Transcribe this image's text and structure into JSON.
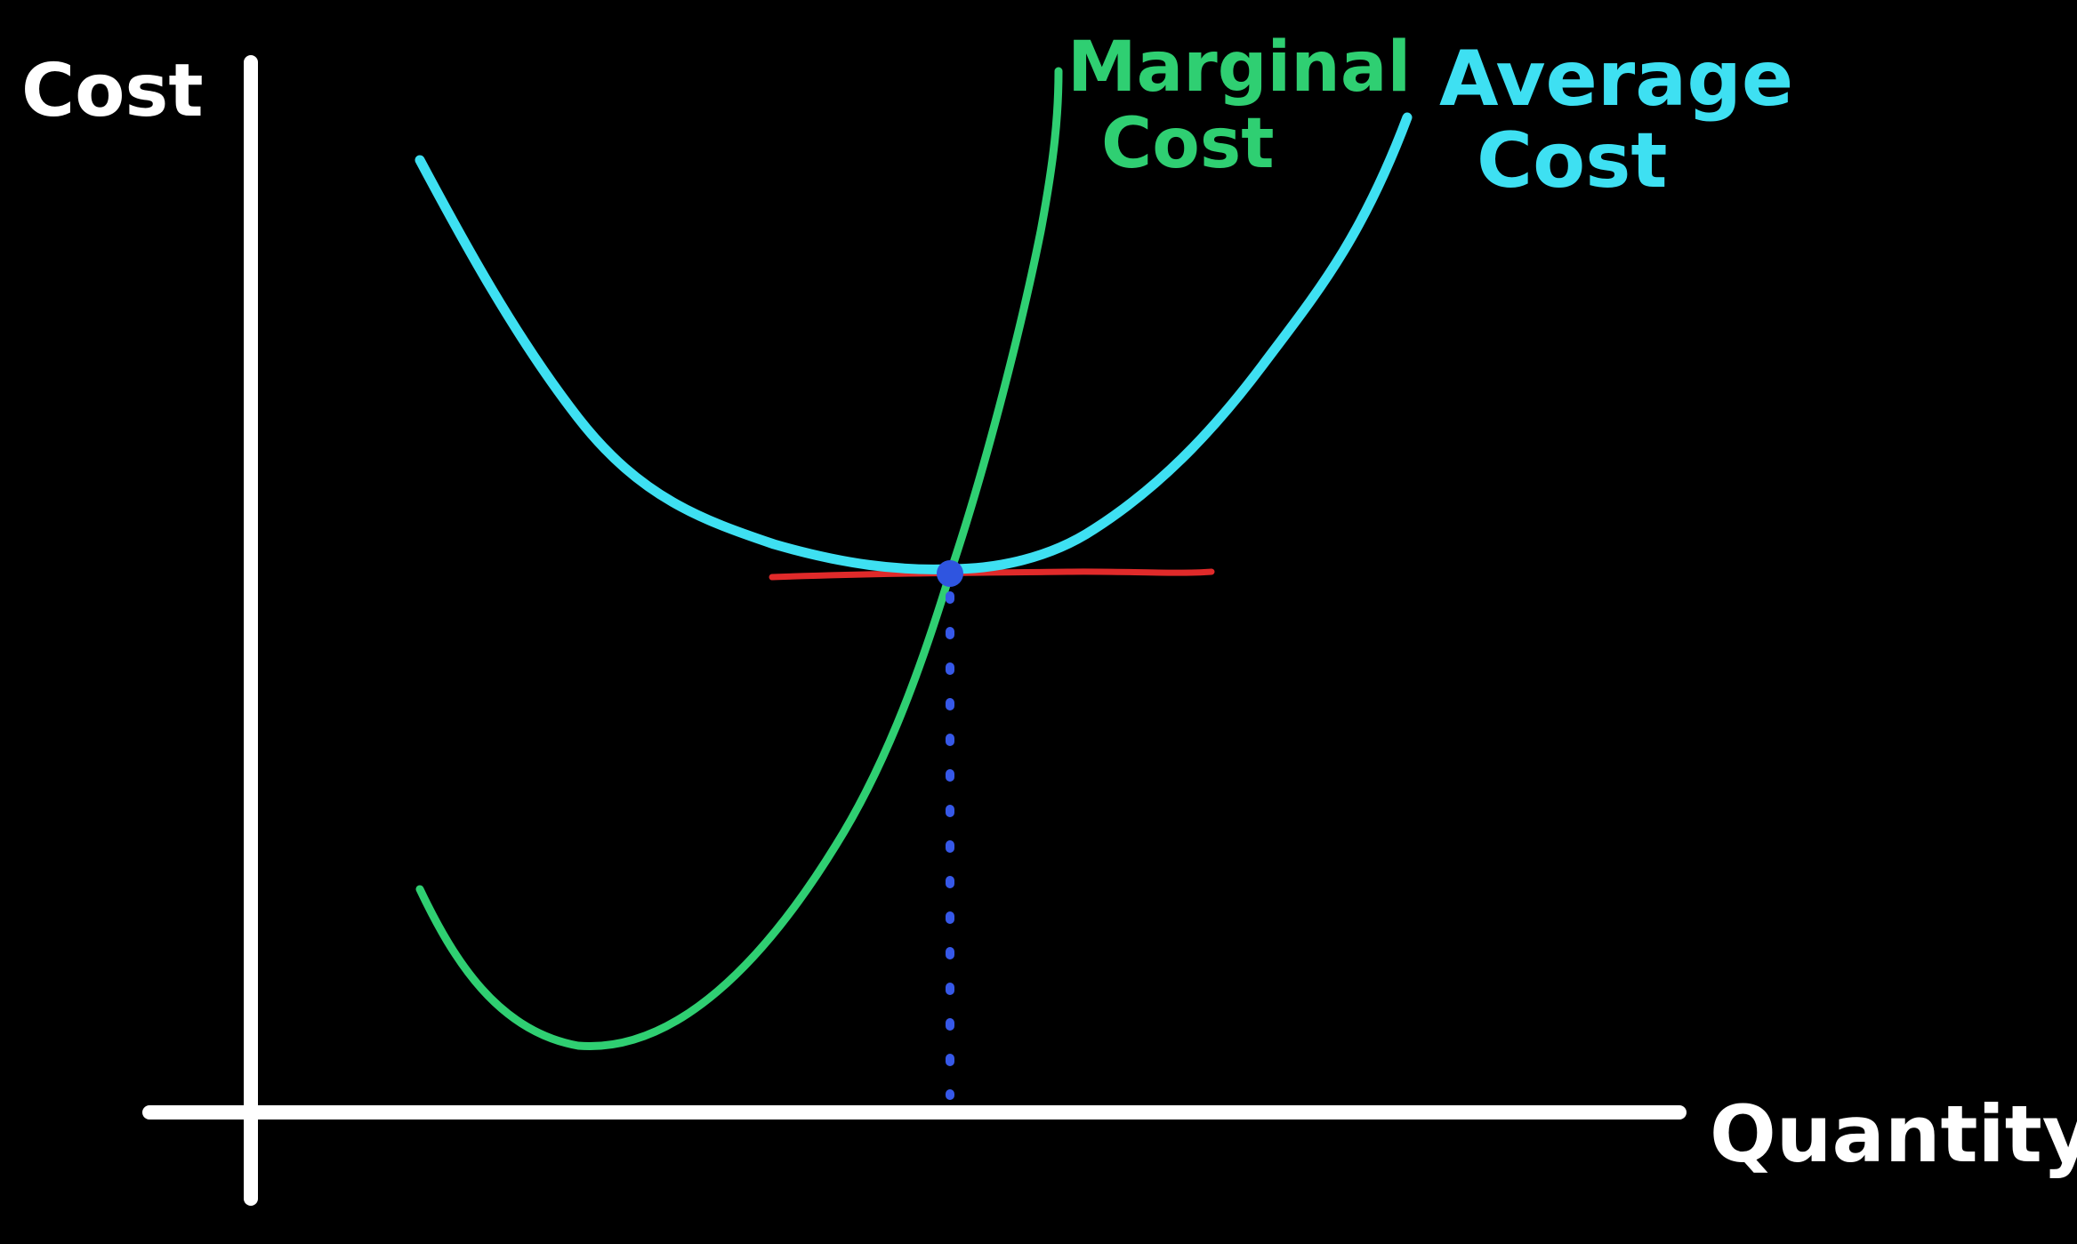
{
  "background_color": "#000000",
  "axes": {
    "y_label": "Cost",
    "x_label": "Quantity",
    "color": "#ffffff"
  },
  "curves": {
    "average_cost": {
      "label_line1": "Average",
      "label_line2": "Cost",
      "color": "#3ee0f2"
    },
    "marginal_cost": {
      "label_line1": "Marginal",
      "label_line2": "Cost",
      "color": "#2fcf72"
    }
  },
  "minimum_line": {
    "color": "#e02a2a"
  },
  "intersection": {
    "point_color": "#2f55e0",
    "drop_line_color": "#3658e8",
    "drop_line_style": "dotted"
  }
}
